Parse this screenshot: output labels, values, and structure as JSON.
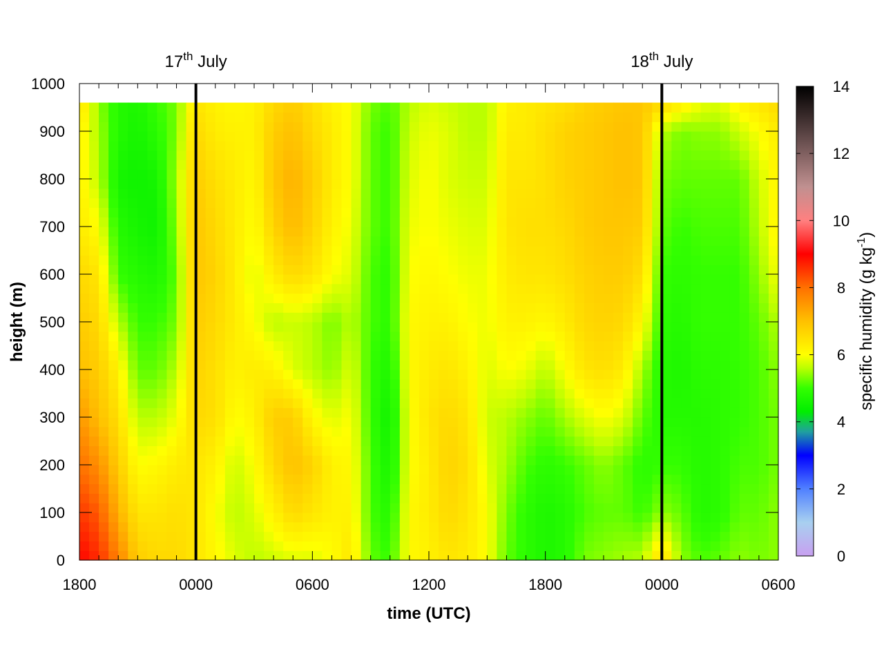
{
  "chart_data": {
    "type": "heatmap",
    "xlabel": "time (UTC)",
    "ylabel": "height (m)",
    "colorbar_label": "specific humidity (g kg",
    "colorbar_label_sup": "-1",
    "colorbar_label_tail": ")",
    "x_tick_labels": [
      "1800",
      "0000",
      "0600",
      "1200",
      "1800",
      "0000",
      "0600"
    ],
    "x_tick_hours": [
      0,
      6,
      12,
      18,
      24,
      30,
      36
    ],
    "x_range_hours": [
      0,
      36
    ],
    "y_ticks": [
      0,
      100,
      200,
      300,
      400,
      500,
      600,
      700,
      800,
      900,
      1000
    ],
    "y_tick_labels": [
      "0",
      "100",
      "200",
      "300",
      "400",
      "500",
      "600",
      "700",
      "800",
      "900",
      "1000"
    ],
    "ylim": [
      0,
      1000
    ],
    "data_top_height": 960,
    "color_range": [
      0,
      14
    ],
    "colorbar_ticks": [
      "0",
      "2",
      "4",
      "6",
      "8",
      "10",
      "12",
      "14"
    ],
    "date_markers": [
      {
        "hour": 6,
        "label": "17",
        "sup": "th",
        "tail": " July"
      },
      {
        "hour": 30,
        "label": "18",
        "sup": "th",
        "tail": " July"
      }
    ],
    "grid": false,
    "colormap_stops": [
      {
        "v": 0,
        "color": "#c8a0f0"
      },
      {
        "v": 1,
        "color": "#a8d0f0"
      },
      {
        "v": 2,
        "color": "#5080ff"
      },
      {
        "v": 3,
        "color": "#0000ff"
      },
      {
        "v": 3.7,
        "color": "#20a0a0"
      },
      {
        "v": 4.3,
        "color": "#00ee00"
      },
      {
        "v": 5,
        "color": "#33ff00"
      },
      {
        "v": 5.6,
        "color": "#bbff00"
      },
      {
        "v": 6,
        "color": "#ffff00"
      },
      {
        "v": 7,
        "color": "#ffc000"
      },
      {
        "v": 8,
        "color": "#ff7000"
      },
      {
        "v": 9,
        "color": "#ff0000"
      },
      {
        "v": 10,
        "color": "#ff8080"
      },
      {
        "v": 11,
        "color": "#c09090"
      },
      {
        "v": 12,
        "color": "#806060"
      },
      {
        "v": 14,
        "color": "#000000"
      }
    ],
    "column_hours": [
      0,
      1,
      2,
      3,
      4,
      5,
      6,
      7,
      8,
      9,
      10,
      11,
      12,
      13,
      14,
      15,
      16,
      17,
      18,
      19,
      20,
      21,
      22,
      23,
      24,
      25,
      26,
      27,
      28,
      29,
      30,
      31,
      32,
      33,
      34,
      35,
      36
    ],
    "row_heights": [
      0,
      100,
      200,
      300,
      400,
      500,
      600,
      700,
      800,
      900,
      960
    ],
    "values": [
      [
        9.0,
        8.5,
        8.0,
        7.5,
        7.0,
        6.8,
        6.6,
        6.3,
        6.2,
        6.2,
        6.5
      ],
      [
        8.6,
        8.2,
        7.6,
        7.0,
        6.8,
        6.6,
        6.4,
        6.0,
        5.6,
        5.5,
        5.4
      ],
      [
        7.8,
        7.2,
        6.8,
        6.5,
        6.2,
        5.6,
        5.0,
        4.8,
        4.6,
        4.8,
        4.8
      ],
      [
        6.8,
        6.4,
        6.0,
        5.6,
        5.2,
        5.0,
        4.8,
        4.6,
        4.5,
        4.6,
        4.7
      ],
      [
        6.6,
        6.4,
        6.1,
        5.6,
        5.2,
        5.0,
        4.7,
        4.5,
        4.6,
        4.9,
        5.0
      ],
      [
        6.6,
        6.5,
        6.3,
        5.9,
        5.6,
        5.3,
        5.2,
        5.4,
        5.5,
        5.3,
        5.3
      ],
      [
        6.4,
        6.4,
        6.4,
        6.6,
        6.7,
        6.8,
        6.9,
        6.9,
        6.8,
        6.6,
        6.4
      ],
      [
        6.1,
        6.0,
        6.2,
        6.5,
        6.5,
        6.6,
        6.7,
        6.6,
        6.5,
        6.3,
        6.2
      ],
      [
        5.8,
        5.6,
        5.7,
        6.0,
        6.2,
        6.3,
        6.3,
        6.3,
        6.3,
        6.2,
        6.1
      ],
      [
        5.6,
        5.8,
        6.0,
        6.2,
        6.3,
        6.0,
        5.8,
        6.0,
        6.1,
        6.2,
        6.2
      ],
      [
        5.7,
        6.2,
        6.6,
        6.8,
        6.2,
        5.6,
        6.3,
        6.7,
        6.9,
        6.8,
        6.6
      ],
      [
        5.8,
        6.6,
        7.0,
        6.8,
        5.8,
        5.7,
        6.6,
        7.1,
        7.2,
        7.0,
        6.8
      ],
      [
        5.8,
        6.4,
        6.7,
        6.1,
        5.6,
        5.6,
        6.4,
        6.7,
        6.8,
        6.6,
        6.5
      ],
      [
        6.0,
        6.2,
        6.2,
        5.8,
        5.4,
        5.3,
        6.0,
        6.2,
        6.3,
        6.3,
        6.2
      ],
      [
        6.4,
        6.2,
        6.1,
        6.0,
        5.8,
        5.6,
        5.8,
        5.9,
        6.0,
        6.0,
        6.0
      ],
      [
        5.2,
        5.1,
        5.1,
        5.0,
        5.0,
        5.1,
        5.1,
        5.2,
        5.2,
        5.2,
        5.3
      ],
      [
        5.0,
        4.8,
        4.6,
        4.5,
        4.7,
        4.9,
        4.9,
        5.0,
        5.0,
        5.0,
        5.1
      ],
      [
        6.1,
        6.1,
        6.0,
        6.0,
        6.1,
        6.1,
        6.0,
        5.9,
        5.8,
        5.7,
        5.6
      ],
      [
        6.2,
        6.3,
        6.3,
        6.4,
        6.3,
        6.2,
        6.1,
        6.0,
        6.0,
        5.9,
        5.8
      ],
      [
        6.4,
        6.6,
        6.7,
        6.6,
        6.4,
        6.2,
        6.0,
        5.9,
        5.8,
        5.8,
        5.7
      ],
      [
        6.3,
        6.4,
        6.5,
        6.4,
        6.2,
        6.0,
        5.9,
        5.8,
        5.7,
        5.6,
        5.6
      ],
      [
        6.0,
        6.0,
        5.8,
        5.7,
        5.8,
        5.9,
        5.9,
        5.8,
        5.7,
        5.6,
        5.6
      ],
      [
        5.2,
        5.3,
        5.5,
        5.6,
        6.0,
        6.2,
        6.3,
        6.4,
        6.4,
        6.3,
        6.2
      ],
      [
        4.9,
        4.9,
        5.1,
        5.4,
        5.9,
        6.2,
        6.4,
        6.5,
        6.4,
        6.3,
        6.3
      ],
      [
        4.7,
        4.7,
        4.9,
        5.2,
        5.6,
        6.1,
        6.4,
        6.5,
        6.5,
        6.5,
        6.4
      ],
      [
        4.8,
        4.8,
        5.0,
        5.5,
        6.0,
        6.3,
        6.5,
        6.6,
        6.7,
        6.7,
        6.5
      ],
      [
        5.3,
        5.1,
        5.2,
        5.8,
        6.4,
        6.6,
        6.7,
        6.8,
        6.8,
        6.8,
        6.7
      ],
      [
        5.4,
        5.2,
        5.4,
        6.0,
        6.5,
        6.7,
        6.8,
        6.9,
        6.9,
        6.9,
        6.8
      ],
      [
        5.5,
        5.2,
        5.2,
        5.8,
        6.3,
        6.6,
        6.8,
        6.9,
        7.0,
        7.0,
        6.9
      ],
      [
        5.6,
        5.0,
        4.9,
        5.2,
        5.5,
        6.1,
        6.5,
        6.8,
        6.9,
        6.9,
        6.9
      ],
      [
        6.6,
        5.4,
        5.0,
        4.8,
        4.8,
        4.9,
        5.0,
        5.2,
        5.3,
        5.6,
        6.6
      ],
      [
        5.4,
        5.2,
        5.0,
        4.8,
        4.7,
        4.8,
        4.9,
        5.0,
        5.2,
        5.3,
        6.3
      ],
      [
        5.1,
        4.8,
        4.8,
        4.8,
        4.9,
        5.0,
        5.0,
        5.1,
        5.2,
        5.4,
        5.9
      ],
      [
        5.2,
        4.9,
        4.9,
        4.9,
        4.9,
        5.0,
        5.0,
        5.1,
        5.2,
        5.4,
        5.8
      ],
      [
        5.4,
        5.2,
        5.1,
        5.0,
        5.0,
        5.0,
        5.0,
        5.1,
        5.2,
        5.7,
        6.2
      ],
      [
        5.3,
        5.2,
        5.1,
        5.1,
        5.1,
        5.2,
        5.4,
        5.6,
        5.7,
        6.0,
        6.4
      ],
      [
        5.4,
        5.4,
        5.3,
        5.3,
        5.4,
        5.6,
        6.0,
        6.2,
        6.2,
        6.3,
        6.6
      ]
    ]
  }
}
